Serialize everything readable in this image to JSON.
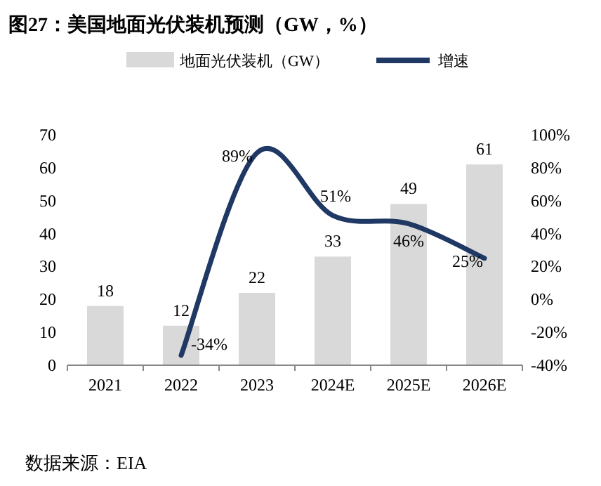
{
  "chart_data": {
    "type": "bar",
    "title": "图27：美国地面光伏装机预测（GW，%）",
    "categories": [
      "2021",
      "2022",
      "2023",
      "2024E",
      "2025E",
      "2026E"
    ],
    "series": [
      {
        "name": "地面光伏装机（GW）",
        "color": "#d9d9d9",
        "values": [
          18,
          12,
          22,
          33,
          49,
          61
        ]
      },
      {
        "name": "增速",
        "type": "line",
        "axis": "y2",
        "color": "#1f3864",
        "values": [
          null,
          -34,
          89,
          51,
          46,
          25
        ],
        "value_labels": [
          null,
          "-34%",
          "89%",
          "51%",
          "46%",
          "25%"
        ]
      }
    ],
    "ylim": [
      0,
      70
    ],
    "yticks": [
      0,
      10,
      20,
      30,
      40,
      50,
      60,
      70
    ],
    "y2lim": [
      -40,
      100
    ],
    "y2ticks": [
      {
        "value": -40,
        "label": "-40%"
      },
      {
        "value": -20,
        "label": "-20%"
      },
      {
        "value": 0,
        "label": "0%"
      },
      {
        "value": 20,
        "label": "20%"
      },
      {
        "value": 40,
        "label": "40%"
      },
      {
        "value": 60,
        "label": "60%"
      },
      {
        "value": 80,
        "label": "80%"
      },
      {
        "value": 100,
        "label": "100%"
      }
    ],
    "data_labels": true,
    "legend": "top",
    "grid": false,
    "annotations": [
      "数据来源：EIA"
    ]
  }
}
